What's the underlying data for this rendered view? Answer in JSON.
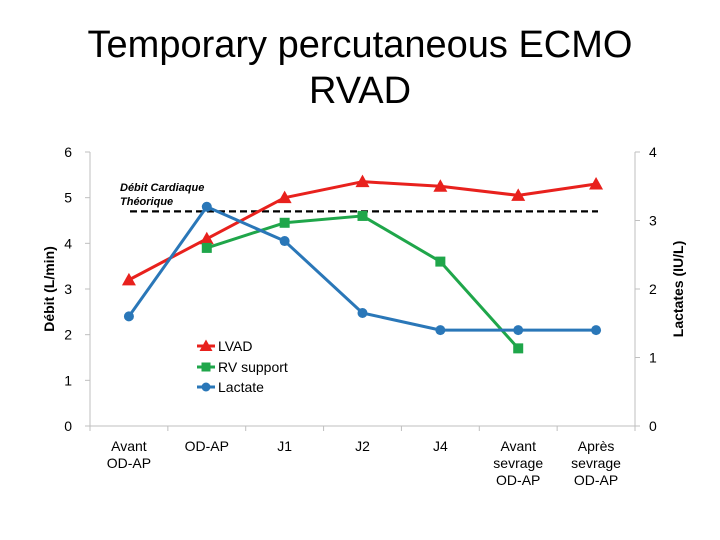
{
  "slide": {
    "title_line1": "Temporary percutaneous ECMO",
    "title_line2": "RVAD"
  },
  "chart_data": {
    "type": "line",
    "title": "Temporary percutaneous ECMO RVAD",
    "categories": [
      [
        "Avant",
        "OD-AP"
      ],
      [
        "OD-AP"
      ],
      [
        "J1"
      ],
      [
        "J2"
      ],
      [
        "J4"
      ],
      [
        "Avant",
        "sevrage",
        "OD-AP"
      ],
      [
        "Après",
        "sevrage",
        "OD-AP"
      ]
    ],
    "ylabel": "Débit (L/min)",
    "ylim": [
      0,
      6
    ],
    "yticks": [
      "0",
      "1",
      "2",
      "3",
      "4",
      "5",
      "6"
    ],
    "y2label": "Lactates (IU/L)",
    "y2lim": [
      0,
      4
    ],
    "y2ticks": [
      "0",
      "1",
      "2",
      "3",
      "4"
    ],
    "reference_line": {
      "label_line1": "Débit Cardiaque",
      "label_line2": "Théorique",
      "value": 4.7,
      "color": "#000000"
    },
    "series": [
      {
        "name": "LVAD",
        "axis": "left",
        "marker": "triangle",
        "color": "#e8211d",
        "values": [
          3.2,
          4.1,
          5.0,
          5.35,
          5.25,
          5.05,
          5.3
        ]
      },
      {
        "name": "RV support",
        "axis": "left",
        "marker": "square",
        "color": "#1fa64a",
        "values": [
          null,
          3.9,
          4.45,
          4.6,
          3.6,
          1.7,
          null
        ]
      },
      {
        "name": "Lactate",
        "axis": "right",
        "marker": "circle",
        "color": "#2a77b8",
        "values": [
          1.6,
          3.2,
          2.7,
          1.65,
          1.4,
          1.4,
          1.4
        ]
      }
    ],
    "legend_position": "center-left",
    "grid": false
  }
}
